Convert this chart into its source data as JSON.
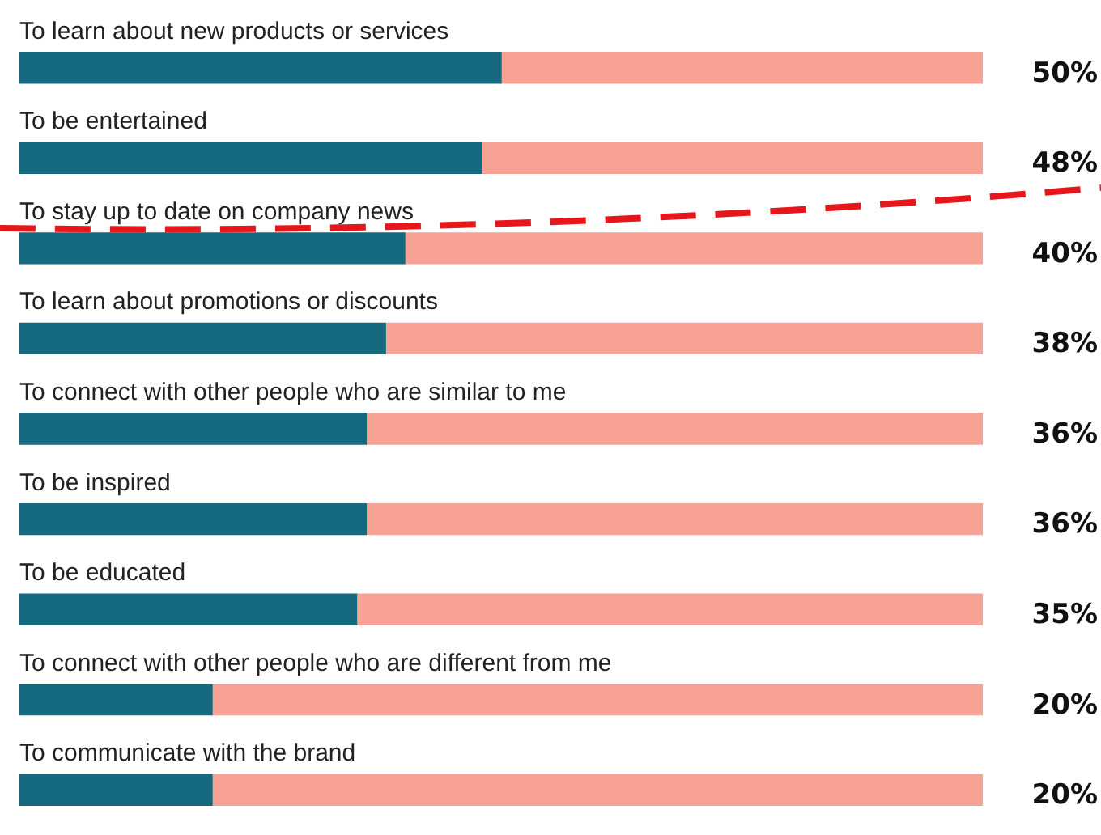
{
  "chart_data": {
    "type": "bar",
    "orientation": "horizontal",
    "stacked": true,
    "legend": false,
    "categories": [
      "To learn about new products or services",
      "To be entertained",
      "To stay up to date on company news",
      "To learn about promotions or discounts",
      "To connect with other people who are similar to me",
      "To be inspired",
      "To be educated",
      "To connect with other people who are different from me",
      "To communicate with the brand"
    ],
    "series": [
      {
        "color": "#156a80",
        "values": [
          50,
          48,
          40,
          38,
          36,
          36,
          35,
          20,
          20
        ],
        "value_labels": [
          "50%",
          "48%",
          "40%",
          "38%",
          "36%",
          "36%",
          "35%",
          "20%",
          "20%"
        ]
      },
      {
        "color": "#f8a295",
        "values": [
          50,
          52,
          60,
          62,
          64,
          64,
          65,
          80,
          80
        ]
      }
    ]
  }
}
